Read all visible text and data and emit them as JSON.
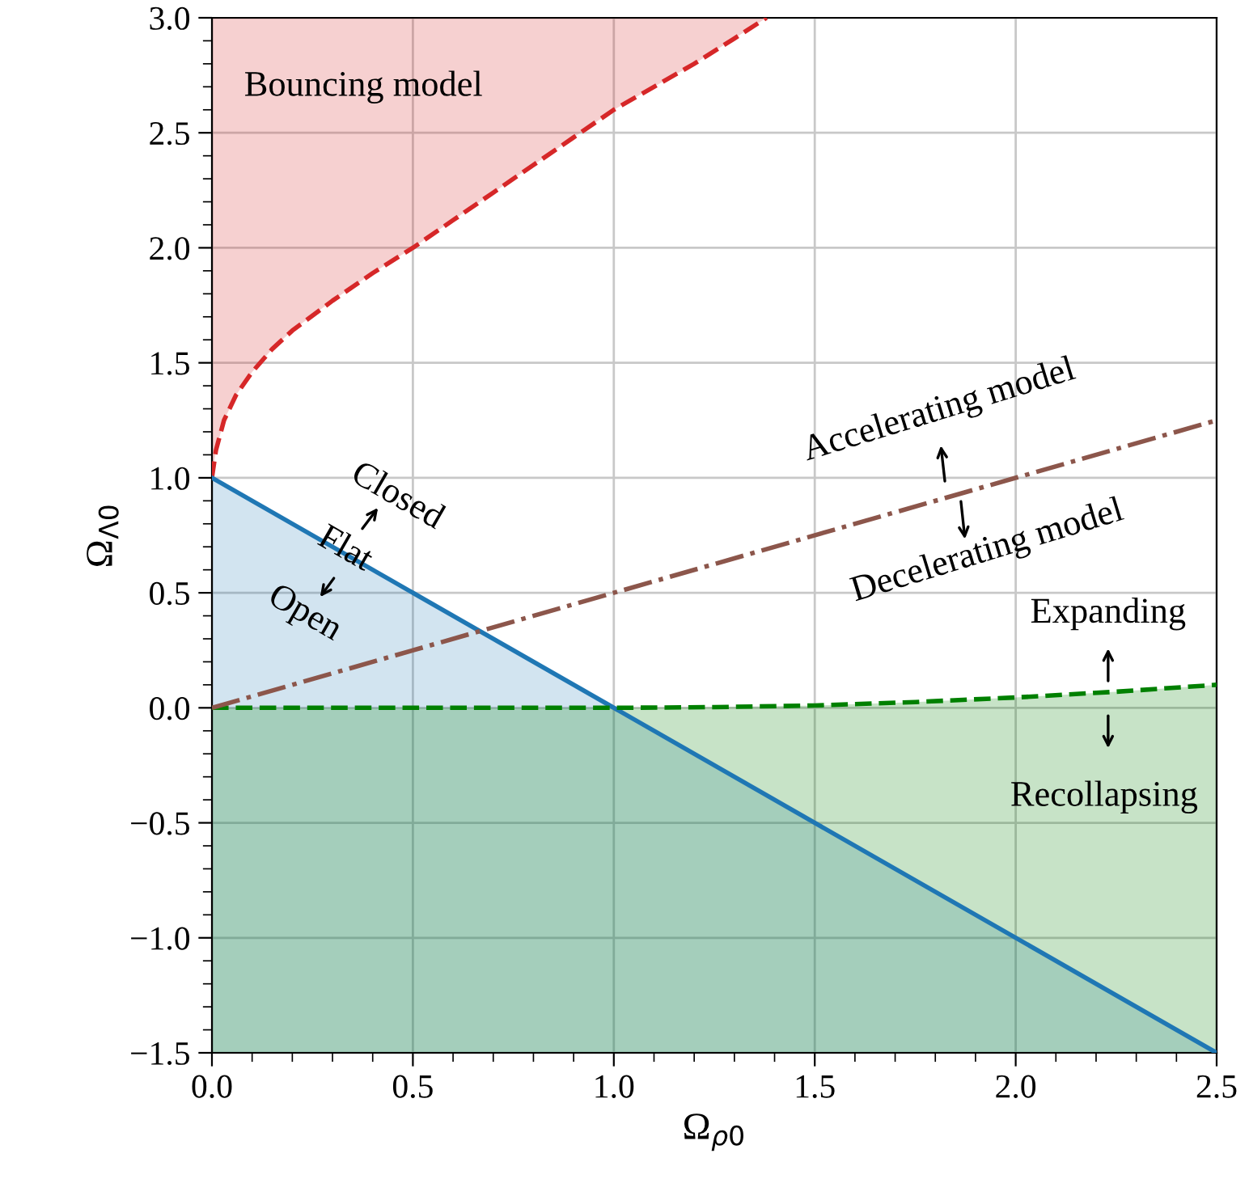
{
  "chart_data": {
    "type": "line",
    "xlabel": "Ω$_{ρ0}$",
    "ylabel": "Ω$_{Λ0}$",
    "xlim": [
      0,
      2.5
    ],
    "xticks": [
      {
        "value": 0,
        "label": "0.0"
      },
      0.5,
      {
        "value": 1,
        "label": "1.0"
      },
      1.5,
      {
        "value": 2,
        "label": "2.0"
      },
      2.5
    ],
    "ylim": [
      -1.5,
      3.0
    ],
    "yticks": [
      {
        "value": -1.5,
        "label": "−1.5"
      },
      {
        "value": -1,
        "label": "−1.0"
      },
      {
        "value": -0.5,
        "label": "−0.5"
      },
      {
        "value": 0,
        "label": "0.0"
      },
      0.5,
      {
        "value": 1,
        "label": "1.0"
      },
      1.5,
      {
        "value": 2,
        "label": "2.0"
      },
      2.5,
      {
        "value": 3,
        "label": "3.0"
      }
    ],
    "grid": true,
    "series": [
      {
        "color": "#d62728",
        "line_style": "dashed",
        "x": [
          0,
          0.01,
          0.03,
          0.06,
          0.1,
          0.15,
          0.2,
          0.3,
          0.4,
          0.5,
          0.6,
          0.7,
          0.8,
          0.9,
          1.0,
          1.1,
          1.2,
          1.3,
          1.38
        ],
        "values": [
          1.0,
          1.12,
          1.25,
          1.36,
          1.46,
          1.56,
          1.64,
          1.77,
          1.89,
          2.0,
          2.12,
          2.24,
          2.36,
          2.48,
          2.6,
          2.7,
          2.8,
          2.91,
          3.0
        ],
        "lower": [
          1.0,
          1.12,
          1.25,
          1.36,
          1.46,
          1.56,
          1.64,
          1.77,
          1.89,
          2.0,
          2.12,
          2.24,
          2.36,
          2.48,
          2.6,
          2.7,
          2.8,
          2.91,
          3.0
        ],
        "upper": [
          3.0,
          3.0,
          3.0,
          3.0,
          3.0,
          3.0,
          3.0,
          3.0,
          3.0,
          3.0,
          3.0,
          3.0,
          3.0,
          3.0,
          3.0,
          3.0,
          3.0,
          3.0,
          3.0
        ]
      },
      {
        "type": "area",
        "color": "#1f77b4",
        "line_style": "solid",
        "x": [
          0,
          2.5
        ],
        "values": [
          1.0,
          -1.5
        ]
      },
      {
        "color": "#008000",
        "line_style": "dashed",
        "x": [
          0,
          1.0,
          1.25,
          1.5,
          1.75,
          2.0,
          2.25,
          2.5
        ],
        "values": [
          0,
          0,
          0.003,
          0.01,
          0.025,
          0.045,
          0.07,
          0.1
        ],
        "lower": [
          -1.5,
          -1.5,
          -1.5,
          -1.5,
          -1.5,
          -1.5,
          -1.5,
          -1.5
        ],
        "upper": [
          0,
          0,
          0.003,
          0.01,
          0.025,
          0.045,
          0.07,
          0.1
        ]
      },
      {
        "color": "#8c564b",
        "line_style": "dashdot",
        "x": [
          0,
          2.5
        ],
        "values": [
          0,
          1.25
        ]
      }
    ],
    "annotations": [
      "Bouncing model",
      "Closed",
      "Flat",
      "Open",
      "Accelerating model",
      "Decelerating model",
      "Expanding",
      "Recollapsing"
    ]
  }
}
